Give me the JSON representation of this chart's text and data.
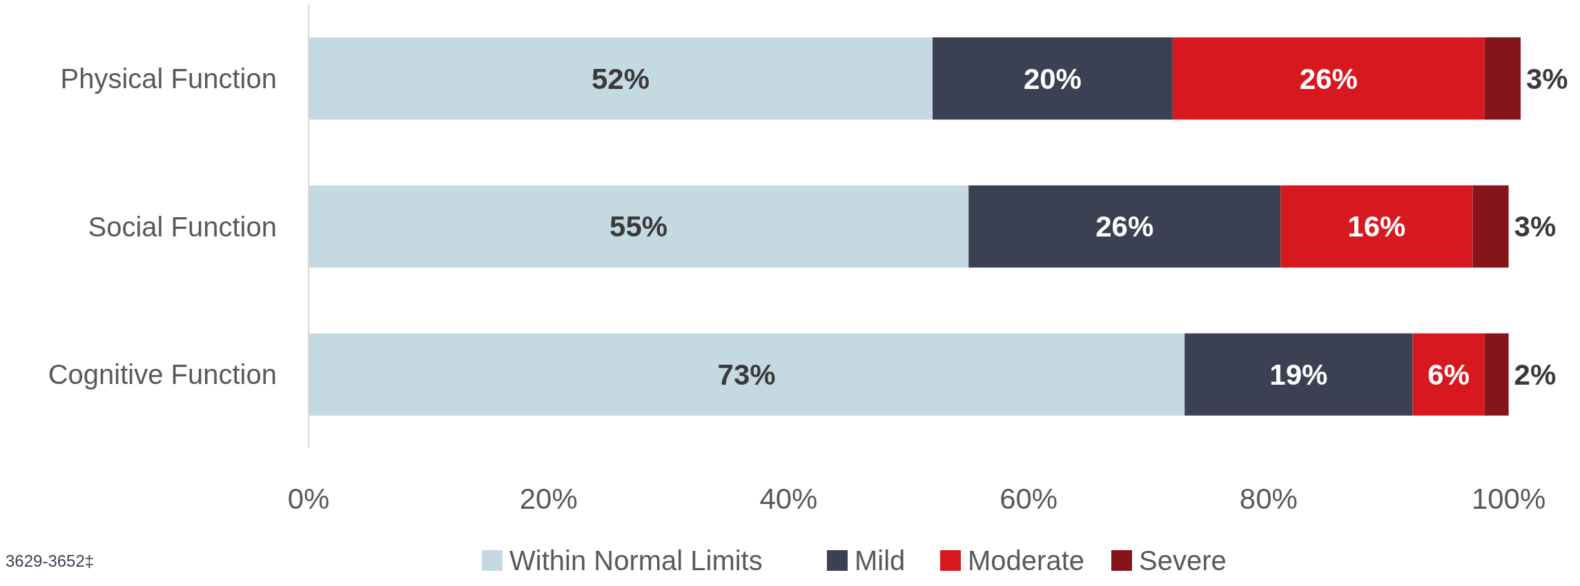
{
  "chart_data": {
    "type": "bar",
    "orientation": "horizontal",
    "stacked": true,
    "categories": [
      "Physical Function",
      "Social Function",
      "Cognitive Function"
    ],
    "series": [
      {
        "name": "Within Normal Limits",
        "color": "#c5d9e3",
        "values": [
          52,
          55,
          73
        ],
        "value_labels": [
          "52%",
          "55%",
          "73%"
        ]
      },
      {
        "name": "Mild",
        "color": "#3c4053",
        "values": [
          20,
          26,
          19
        ],
        "value_labels": [
          "20%",
          "26%",
          "19%"
        ]
      },
      {
        "name": "Moderate",
        "color": "#d7191f",
        "values": [
          26,
          16,
          6
        ],
        "value_labels": [
          "26%",
          "16%",
          "6%"
        ]
      },
      {
        "name": "Severe",
        "color": "#85141b",
        "values": [
          3,
          3,
          2
        ],
        "value_labels": [
          "3%",
          "3%",
          "2%"
        ]
      }
    ],
    "xlim": [
      0,
      101
    ],
    "xticks": [
      {
        "value": 0,
        "label": "0%"
      },
      {
        "value": 20,
        "label": "20%"
      },
      {
        "value": 40,
        "label": "40%"
      },
      {
        "value": 60,
        "label": "60%"
      },
      {
        "value": 80,
        "label": "80%"
      },
      {
        "value": 100,
        "label": "100%"
      }
    ],
    "grid": false,
    "legend": "bottom",
    "annotations": [
      "3629-3652‡"
    ]
  }
}
